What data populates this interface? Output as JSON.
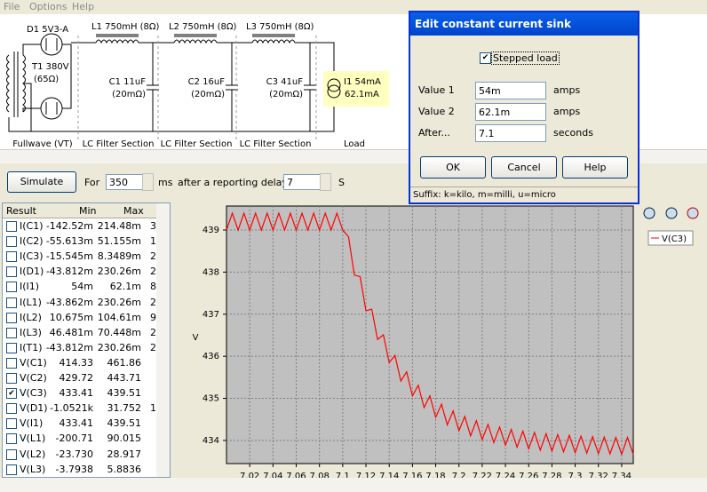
{
  "menu": [
    "File",
    "Options",
    "Help"
  ],
  "schematic": {
    "rectifier": {
      "diode": "D1 5V3-A",
      "transformer": "T1 380V",
      "resistance": "(65Ω)",
      "footer": "Fullwave (VT)"
    },
    "sections": [
      {
        "inductor": "L1 750mH (8Ω)",
        "capacitor": "C1 11uF",
        "esr": "(20mΩ)",
        "footer": "LC Filter Section"
      },
      {
        "inductor": "L2 750mH (8Ω)",
        "capacitor": "C2 16uF",
        "esr": "(20mΩ)",
        "footer": "LC Filter Section"
      },
      {
        "inductor": "L3 750mH (8Ω)",
        "capacitor": "C3 41uF",
        "esr": "(20mΩ)",
        "footer": "LC Filter Section"
      }
    ],
    "load": {
      "line1": "I1 54mA",
      "line2": "62.1mA",
      "footer": "Load"
    }
  },
  "toolbar": {
    "simulate": "Simulate",
    "for": "For",
    "duration": "350",
    "ms": "ms",
    "delay_text": "after a reporting delay of",
    "delay": "7",
    "unit": "S"
  },
  "table": {
    "headers": [
      "Result",
      "Min",
      "Max"
    ],
    "rows": [
      {
        "name": "I(C1)",
        "min": "-142.52m",
        "max": "214.48m",
        "cut": "3",
        "checked": false
      },
      {
        "name": "I(C2)",
        "min": "-55.613m",
        "max": "51.155m",
        "cut": "1",
        "checked": false
      },
      {
        "name": "I(C3)",
        "min": "-15.545m",
        "max": "8.3489m",
        "cut": "2",
        "checked": false
      },
      {
        "name": "I(D1)",
        "min": "-43.812m",
        "max": "230.26m",
        "cut": "2",
        "checked": false
      },
      {
        "name": "I(I1)",
        "min": "54m",
        "max": "62.1m",
        "cut": "8",
        "checked": false
      },
      {
        "name": "I(L1)",
        "min": "-43.862m",
        "max": "230.26m",
        "cut": "2",
        "checked": false
      },
      {
        "name": "I(L2)",
        "min": "10.675m",
        "max": "104.61m",
        "cut": "9",
        "checked": false
      },
      {
        "name": "I(L3)",
        "min": "46.481m",
        "max": "70.448m",
        "cut": "2",
        "checked": false
      },
      {
        "name": "I(T1)",
        "min": "-43.812m",
        "max": "230.26m",
        "cut": "2",
        "checked": false
      },
      {
        "name": "V(C1)",
        "min": "414.33",
        "max": "461.86",
        "checked": false
      },
      {
        "name": "V(C2)",
        "min": "429.72",
        "max": "443.71",
        "checked": false
      },
      {
        "name": "V(C3)",
        "min": "433.41",
        "max": "439.51",
        "checked": true
      },
      {
        "name": "V(D1)",
        "min": "-1.0521k",
        "max": "31.752",
        "cut": "1",
        "checked": false
      },
      {
        "name": "V(I1)",
        "min": "433.41",
        "max": "439.51",
        "checked": false
      },
      {
        "name": "V(L1)",
        "min": "-200.71",
        "max": "90.015",
        "checked": false
      },
      {
        "name": "V(L2)",
        "min": "-23.730",
        "max": "28.917",
        "checked": false
      },
      {
        "name": "V(L3)",
        "min": "-3.7938",
        "max": "5.8836",
        "checked": false
      }
    ]
  },
  "chart_data": {
    "type": "line",
    "y_label": "V",
    "xlim": [
      7.0,
      7.35
    ],
    "ylim": [
      433.45,
      439.57
    ],
    "xticks": [
      7.02,
      7.04,
      7.06,
      7.08,
      7.1,
      7.12,
      7.14,
      7.16,
      7.18,
      7.2,
      7.22,
      7.24,
      7.26,
      7.28,
      7.3,
      7.32,
      7.34
    ],
    "yticks": [
      434,
      435,
      436,
      437,
      438,
      439
    ],
    "grid": true,
    "series": [
      {
        "name": "V(C3)",
        "color": "#ff0000",
        "x": [
          7.0,
          7.005,
          7.01,
          7.015,
          7.02,
          7.025,
          7.03,
          7.035,
          7.04,
          7.045,
          7.05,
          7.055,
          7.06,
          7.065,
          7.07,
          7.075,
          7.08,
          7.085,
          7.09,
          7.095,
          7.1,
          7.105,
          7.11,
          7.115,
          7.12,
          7.125,
          7.13,
          7.135,
          7.14,
          7.145,
          7.15,
          7.155,
          7.16,
          7.165,
          7.17,
          7.175,
          7.18,
          7.185,
          7.19,
          7.195,
          7.2,
          7.205,
          7.21,
          7.215,
          7.22,
          7.225,
          7.23,
          7.235,
          7.24,
          7.245,
          7.25,
          7.255,
          7.26,
          7.265,
          7.27,
          7.275,
          7.28,
          7.285,
          7.29,
          7.295,
          7.3,
          7.305,
          7.31,
          7.315,
          7.32,
          7.325,
          7.33,
          7.335,
          7.34,
          7.345,
          7.35
        ],
        "values": [
          439.0,
          439.4,
          439.0,
          439.4,
          439.0,
          439.4,
          439.0,
          439.4,
          439.0,
          439.4,
          439.0,
          439.4,
          439.0,
          439.4,
          439.0,
          439.4,
          439.0,
          439.4,
          439.0,
          439.4,
          439.0,
          438.84,
          437.93,
          437.89,
          437.08,
          437.12,
          436.4,
          436.51,
          435.85,
          436.02,
          435.41,
          435.63,
          435.06,
          435.31,
          434.78,
          435.06,
          434.55,
          434.86,
          434.37,
          434.7,
          434.23,
          434.57,
          434.11,
          434.47,
          434.02,
          434.38,
          433.95,
          434.32,
          433.89,
          434.26,
          433.84,
          434.22,
          433.8,
          434.19,
          433.77,
          434.16,
          433.75,
          434.14,
          433.73,
          434.12,
          433.71,
          434.1,
          433.7,
          434.09,
          433.69,
          434.08,
          433.68,
          434.07,
          433.67,
          434.07,
          433.67
        ]
      }
    ]
  },
  "dialog": {
    "title": "Edit constant current sink",
    "stepped": {
      "label": "Stepped load",
      "checked": true
    },
    "fields": [
      {
        "label": "Value 1",
        "value": "54m",
        "unit": "amps"
      },
      {
        "label": "Value 2",
        "value": "62.1m",
        "unit": "amps"
      },
      {
        "label": "After...",
        "value": "7.1",
        "unit": "seconds"
      }
    ],
    "buttons": [
      "OK",
      "Cancel",
      "Help"
    ],
    "status": "Suffix: k=kilo, m=milli, u=micro"
  }
}
